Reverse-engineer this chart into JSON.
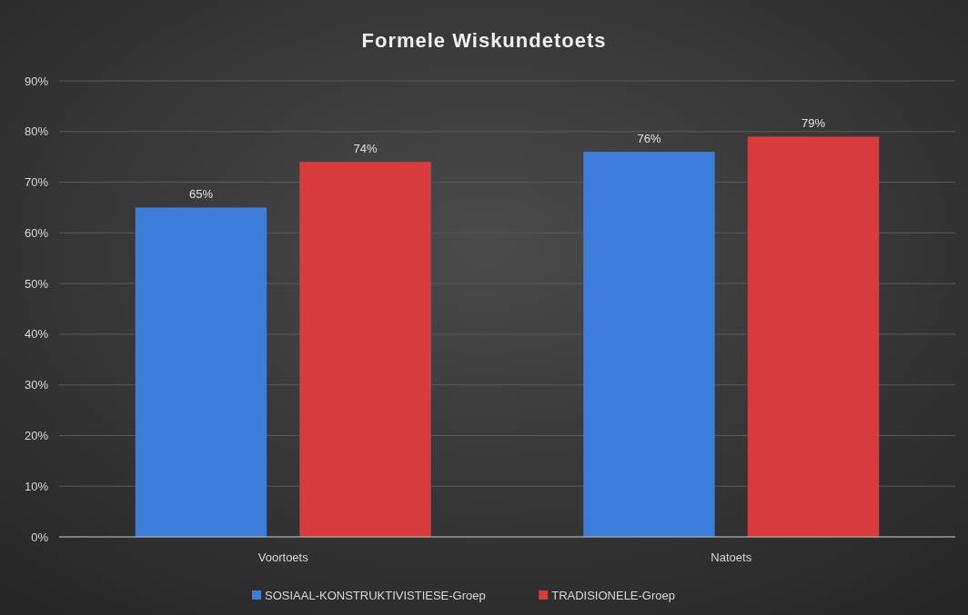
{
  "chart_data": {
    "type": "bar",
    "title": "Formele Wiskundetoets",
    "categories": [
      "Voortoets",
      "Natoets"
    ],
    "series": [
      {
        "name": "SOSIAAL-KONSTRUKTIVISTIESE-Groep",
        "color": "#3b7dd8",
        "values": [
          65,
          76
        ],
        "value_labels": [
          "65%",
          "76%"
        ]
      },
      {
        "name": "TRADISIONELE-Groep",
        "color": "#d83b3b",
        "values": [
          74,
          79
        ],
        "value_labels": [
          "74%",
          "79%"
        ]
      }
    ],
    "ylim": [
      0,
      90
    ],
    "yticks": [
      {
        "value": 0,
        "label": "0%"
      },
      {
        "value": 10,
        "label": "10%"
      },
      {
        "value": 20,
        "label": "20%"
      },
      {
        "value": 30,
        "label": "30%"
      },
      {
        "value": 40,
        "label": "40%"
      },
      {
        "value": 50,
        "label": "50%"
      },
      {
        "value": 60,
        "label": "60%"
      },
      {
        "value": 70,
        "label": "70%"
      },
      {
        "value": 80,
        "label": "80%"
      },
      {
        "value": 90,
        "label": "90%"
      }
    ],
    "grid": "y",
    "legend": "bottom"
  }
}
